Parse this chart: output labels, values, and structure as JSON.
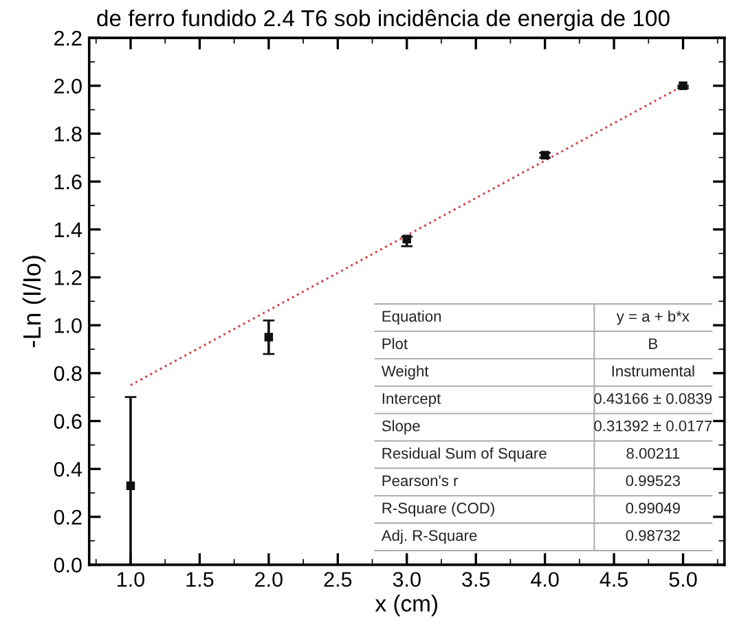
{
  "chart_data": {
    "type": "scatter",
    "title": "de ferro fundido 2.4 T6 sob incidência de energia de 100",
    "xlabel": "x (cm)",
    "ylabel": "-Ln (I/Io)",
    "series": [
      {
        "color": "#111111",
        "x": [
          1,
          2,
          3,
          4,
          5
        ],
        "values": [
          0.33,
          0.95,
          1.36,
          1.71,
          2.0
        ],
        "errors": [
          [
            0,
            0.7
          ],
          [
            0.88,
            1.02
          ],
          [
            1.33,
            1.37
          ],
          [
            1.7,
            1.72
          ],
          [
            1.99,
            2.0
          ]
        ],
        "marker": "square"
      },
      {
        "type": "line",
        "color": "#d04848",
        "x": [
          1,
          5
        ],
        "values": [
          0.75,
          2.0
        ],
        "line_style": "dotted"
      }
    ],
    "xlim": [
      0.7,
      5.3
    ],
    "ylim": [
      0,
      2.2
    ],
    "xticks": [
      {
        "value": 1.0,
        "label": "1.0"
      },
      {
        "value": 1.5,
        "label": "1.5"
      },
      {
        "value": 2.0,
        "label": "2.0"
      },
      {
        "value": 2.5,
        "label": "2.5"
      },
      {
        "value": 3.0,
        "label": "3.0"
      },
      {
        "value": 3.5,
        "label": "3.5"
      },
      {
        "value": 4.0,
        "label": "4.0"
      },
      {
        "value": 4.5,
        "label": "4.5"
      },
      {
        "value": 5.0,
        "label": "5.0"
      }
    ],
    "yticks": [
      {
        "value": 0.0,
        "label": "0.0"
      },
      {
        "value": 0.2,
        "label": "0.2"
      },
      {
        "value": 0.4,
        "label": "0.4"
      },
      {
        "value": 0.6,
        "label": "0.6"
      },
      {
        "value": 0.8,
        "label": "0.8"
      },
      {
        "value": 1.0,
        "label": "1.0"
      },
      {
        "value": 1.2,
        "label": "1.2"
      },
      {
        "value": 1.4,
        "label": "1.4"
      },
      {
        "value": 1.6,
        "label": "1.6"
      },
      {
        "value": 1.8,
        "label": "1.8"
      },
      {
        "value": 2.0,
        "label": "2.0"
      },
      {
        "value": 2.2,
        "label": "2.2"
      }
    ],
    "grid": false,
    "annotations": [
      "Equation",
      "y = a + b*x",
      "Plot",
      "B",
      "Weight",
      "Instrumental",
      "Intercept",
      "0.43166 ± 0.0839",
      "Slope",
      "0.31392 ± 0.0177",
      "Residual Sum of Square",
      "8.00211",
      "Pearson's r",
      "0.99523",
      "R-Square (COD)",
      "0.99049",
      "Adj. R-Square",
      "0.98732"
    ]
  }
}
